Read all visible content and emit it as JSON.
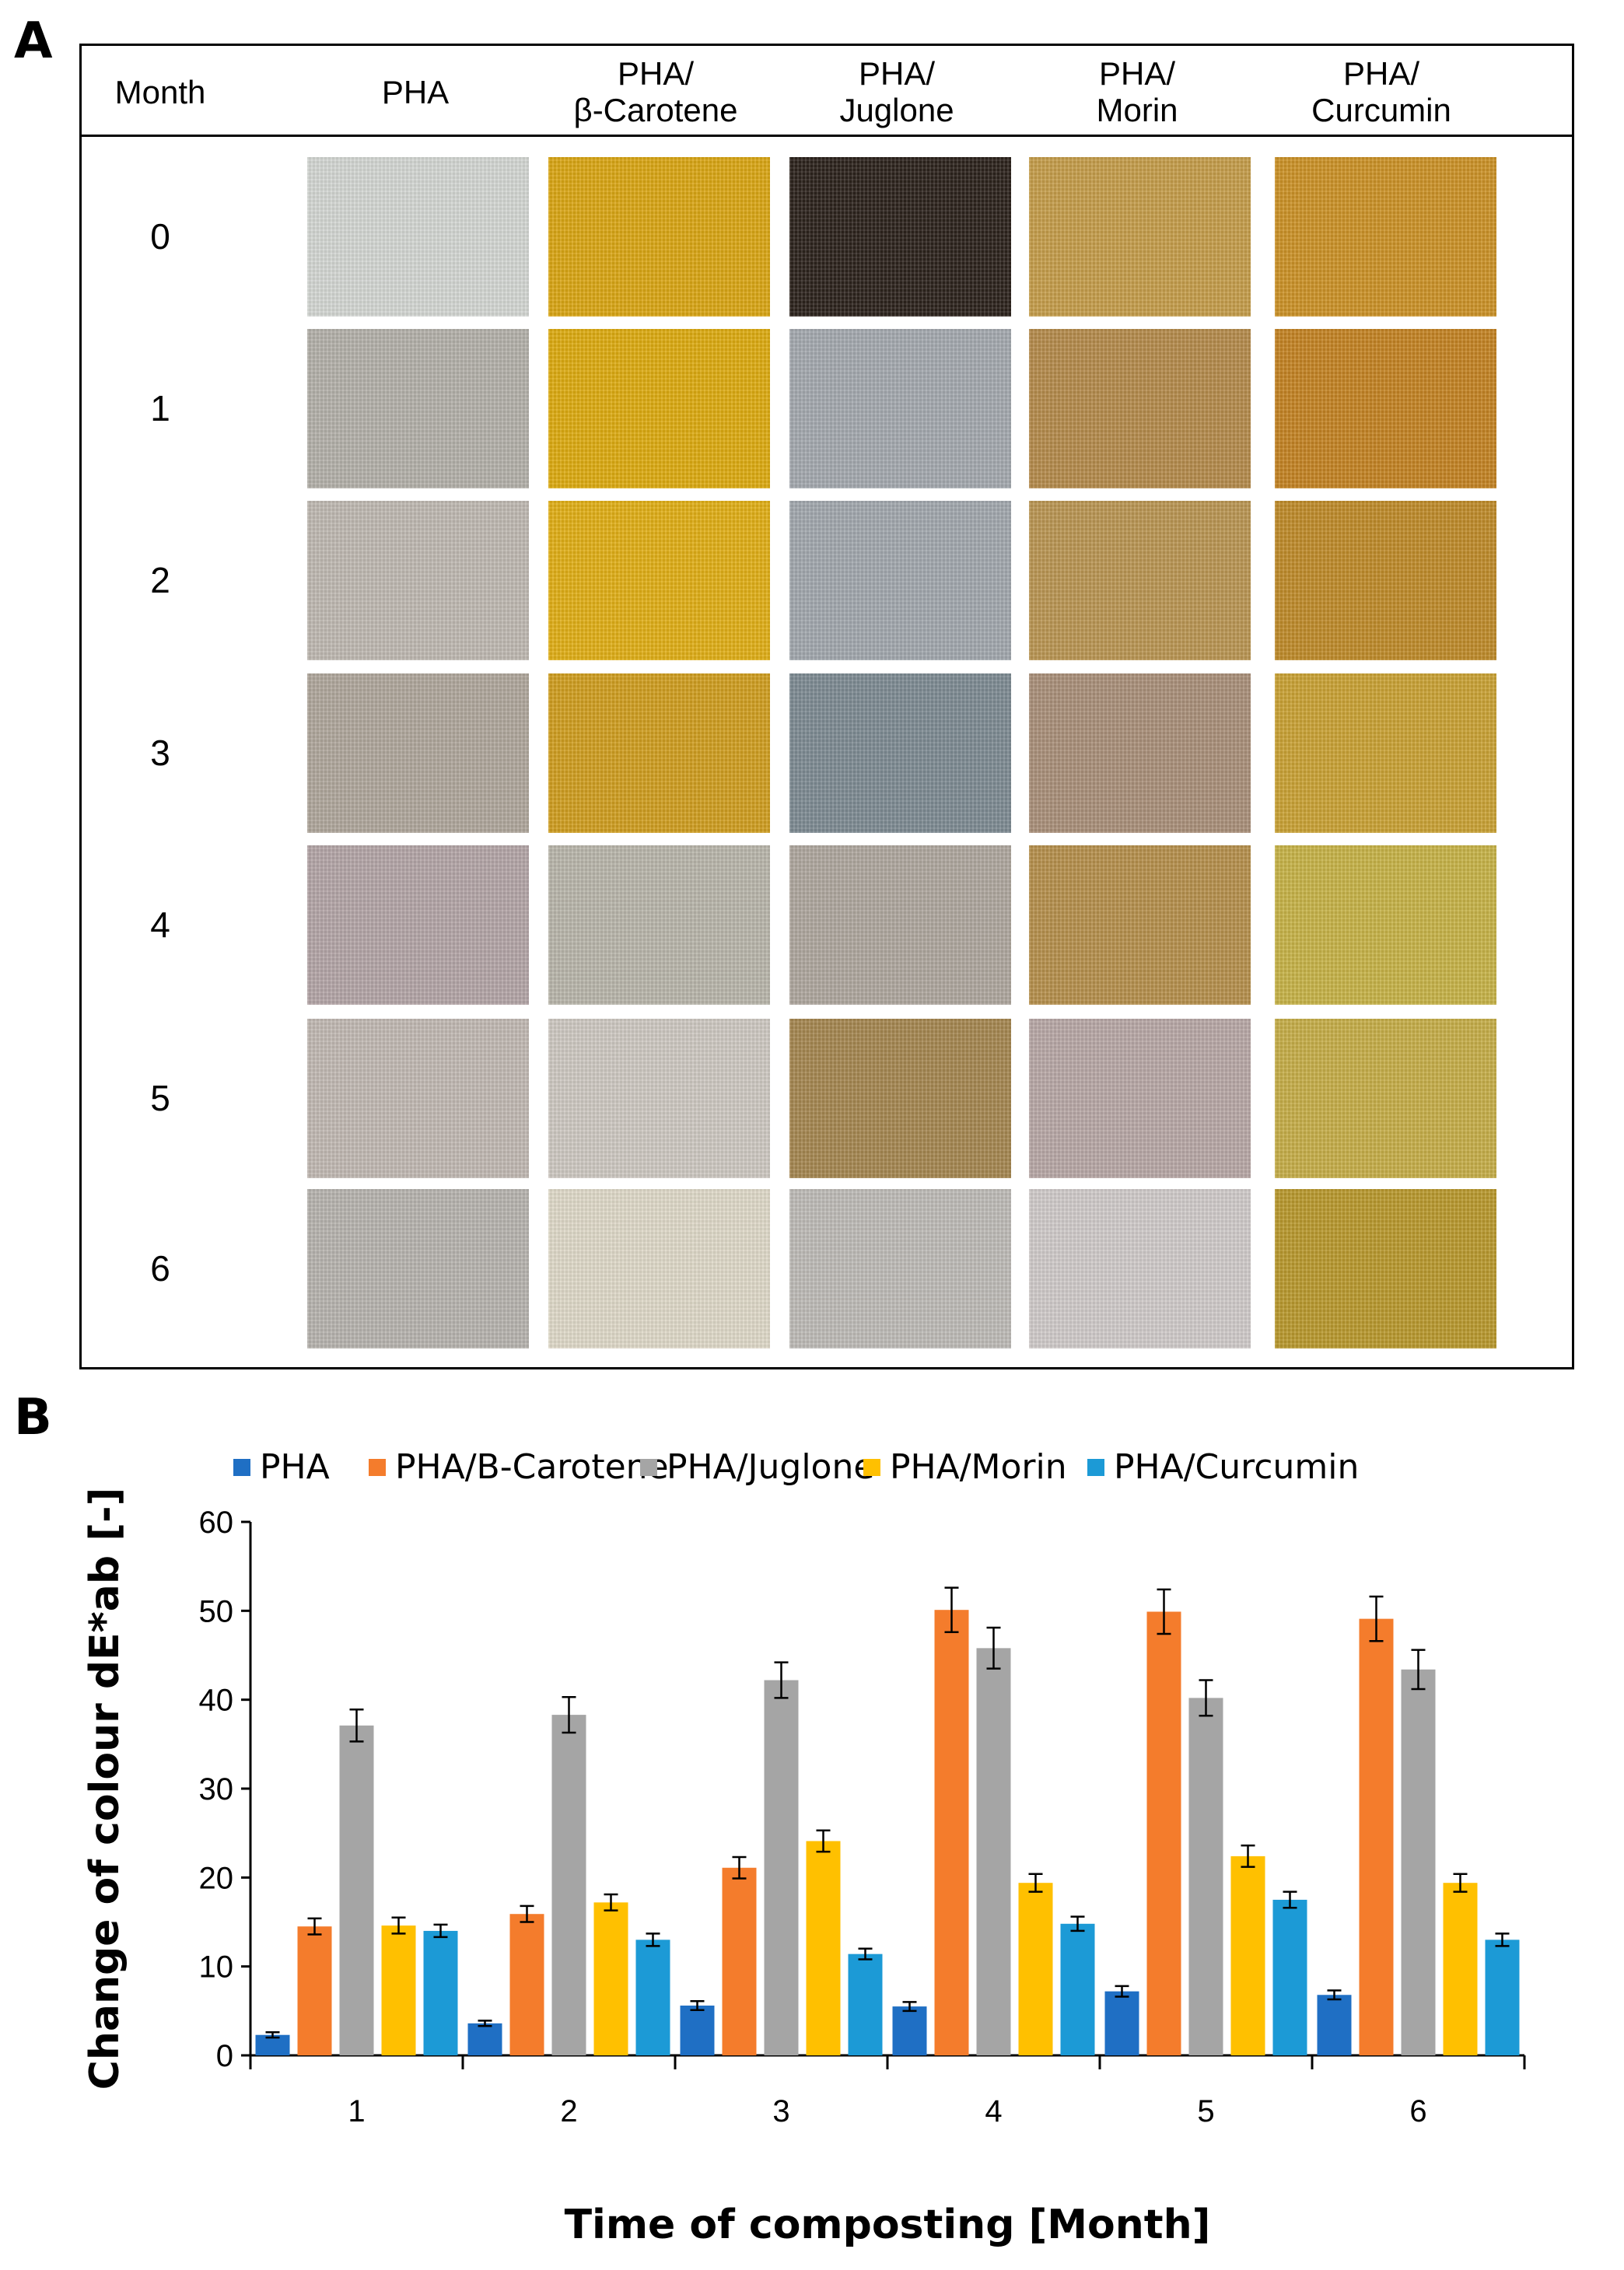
{
  "panel_a": {
    "letter": "A",
    "columns": [
      "Month",
      "PHA",
      "PHA/\nβ-Carotene",
      "PHA/\nJuglone",
      "PHA/\nMorin",
      "PHA/\nCurcumin"
    ],
    "rows": [
      {
        "month": "0",
        "colors": [
          "#d3d6d2",
          "#d9a514",
          "#2c221c",
          "#c49c4a",
          "#cb9126"
        ]
      },
      {
        "month": "1",
        "colors": [
          "#b3b0a9",
          "#dcaa10",
          "#a3a8ae",
          "#b48a4b",
          "#c38222"
        ]
      },
      {
        "month": "2",
        "colors": [
          "#beb8b1",
          "#e0ae16",
          "#a1a7ad",
          "#b99552",
          "#be8a29"
        ]
      },
      {
        "month": "3",
        "colors": [
          "#afa69b",
          "#cf9d1f",
          "#7d8a92",
          "#a98f79",
          "#c9a134"
        ]
      },
      {
        "month": "4",
        "colors": [
          "#b3a4a6",
          "#b8b5aa",
          "#aea69d",
          "#b58f4c",
          "#c6b247"
        ]
      },
      {
        "month": "5",
        "colors": [
          "#c0b8b2",
          "#cdc8c1",
          "#a48650",
          "#b7a7a5",
          "#c5ad48"
        ]
      },
      {
        "month": "6",
        "colors": [
          "#b6b3ae",
          "#ded8c8",
          "#bdbab6",
          "#cfcac9",
          "#b8982d"
        ]
      }
    ]
  },
  "panel_b": {
    "letter": "B"
  },
  "chart_data": {
    "type": "bar",
    "title": "",
    "xlabel": "Time of composting [Month]",
    "ylabel": "Change of colour dE*ab [-]",
    "categories": [
      "1",
      "2",
      "3",
      "4",
      "5",
      "6"
    ],
    "ylim": [
      0,
      60
    ],
    "yticks": [
      "0",
      "10",
      "20",
      "30",
      "40",
      "50",
      "60"
    ],
    "legend_position": "top",
    "series": [
      {
        "name": "PHA",
        "color": "#1f6fc4",
        "values": [
          2.3,
          3.6,
          5.6,
          5.5,
          7.2,
          6.8
        ],
        "errors": [
          0.3,
          0.3,
          0.5,
          0.5,
          0.6,
          0.5
        ]
      },
      {
        "name": "PHA/B-Carotene",
        "color": "#f47c2c",
        "values": [
          14.5,
          15.9,
          21.1,
          50.1,
          49.9,
          49.1
        ],
        "errors": [
          0.9,
          0.9,
          1.2,
          2.5,
          2.5,
          2.5
        ]
      },
      {
        "name": "PHA/Juglone",
        "color": "#a5a5a5",
        "values": [
          37.1,
          38.3,
          42.2,
          45.8,
          40.2,
          43.4
        ],
        "errors": [
          1.8,
          2.0,
          2.0,
          2.3,
          2.0,
          2.2
        ]
      },
      {
        "name": "PHA/Morin",
        "color": "#ffc000",
        "values": [
          14.6,
          17.2,
          24.1,
          19.4,
          22.4,
          19.4
        ],
        "errors": [
          0.9,
          0.9,
          1.2,
          1.0,
          1.2,
          1.0
        ]
      },
      {
        "name": "PHA/Curcumin",
        "color": "#1c9ad6",
        "values": [
          14.0,
          13.0,
          11.4,
          14.8,
          17.5,
          13.0
        ],
        "errors": [
          0.7,
          0.7,
          0.6,
          0.8,
          0.9,
          0.7
        ]
      }
    ]
  }
}
